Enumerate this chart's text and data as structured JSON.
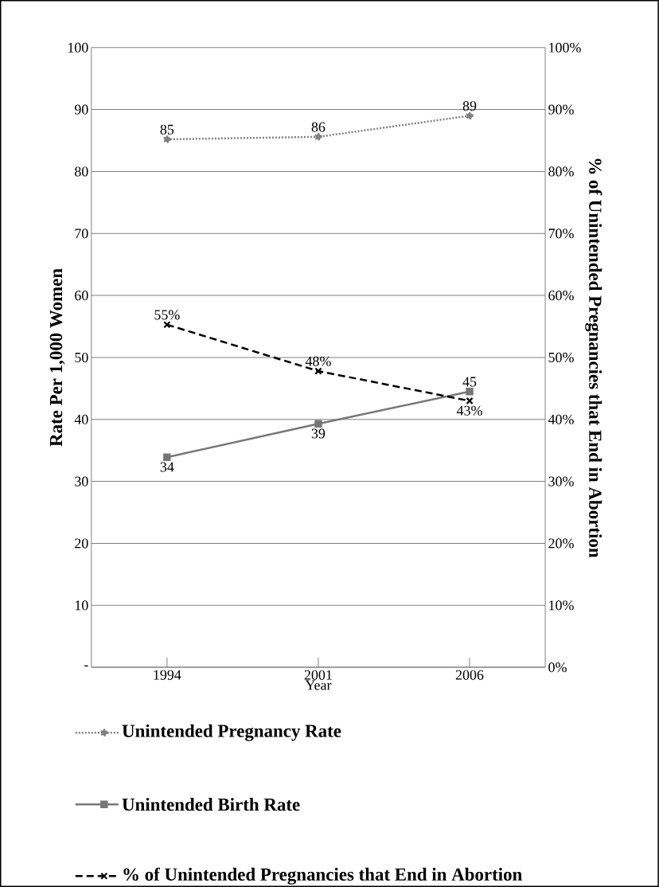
{
  "chart_data": {
    "type": "line",
    "categories": [
      "1994",
      "2001",
      "2006"
    ],
    "xlabel": "Year",
    "ylabel": "Rate Per 1,000 Women",
    "y2label": "% of Unintended Pregnancies that End in Abortion",
    "ylim": [
      0,
      100
    ],
    "yticks": [
      {
        "value": 0,
        "label": "-"
      },
      10,
      20,
      30,
      40,
      50,
      60,
      70,
      80,
      90,
      100
    ],
    "y2lim": [
      0,
      100
    ],
    "y2ticks": [
      {
        "value": 0,
        "label": "0%"
      },
      {
        "value": 10,
        "label": "10%"
      },
      {
        "value": 20,
        "label": "20%"
      },
      {
        "value": 30,
        "label": "30%"
      },
      {
        "value": 40,
        "label": "40%"
      },
      {
        "value": 50,
        "label": "50%"
      },
      {
        "value": 60,
        "label": "60%"
      },
      {
        "value": 70,
        "label": "70%"
      },
      {
        "value": 80,
        "label": "80%"
      },
      {
        "value": 90,
        "label": "90%"
      },
      {
        "value": 100,
        "label": "100%"
      }
    ],
    "grid": "y",
    "legend": "bottom",
    "series": [
      {
        "name": "Unintended Pregnancy Rate",
        "color": "#808080",
        "marker": "circle",
        "line_style": "dotted",
        "values": [
          85.2,
          85.6,
          89.0
        ],
        "value_labels": [
          "85",
          "86",
          "89"
        ]
      },
      {
        "name": "Unintended Birth Rate",
        "color": "#777777",
        "marker": "square",
        "line_style": "solid",
        "values": [
          33.9,
          39.3,
          44.5
        ],
        "value_labels": [
          "34",
          "39",
          "45"
        ]
      },
      {
        "name": "% of Unintended Pregnancies that End in Abortion",
        "color": "#000000",
        "marker": "cross",
        "line_style": "dashed",
        "axis": "y2",
        "values": [
          55.3,
          47.8,
          43.0
        ],
        "value_labels": [
          "55%",
          "48%",
          "43%"
        ]
      }
    ]
  }
}
